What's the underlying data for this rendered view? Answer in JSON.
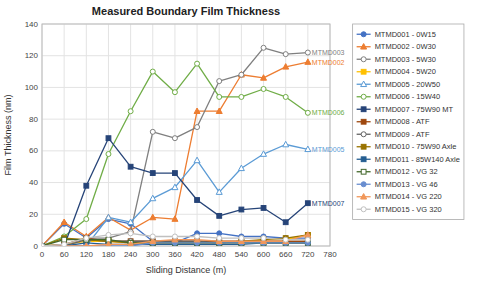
{
  "chart_data": {
    "type": "line",
    "title": "Measured Boundary Film Thickness",
    "xlabel": "Sliding Distance (m)",
    "ylabel": "Film Thickness (nm)",
    "xlim": [
      0,
      780
    ],
    "ylim": [
      0,
      140
    ],
    "xticks": [
      0,
      60,
      120,
      180,
      240,
      300,
      360,
      420,
      480,
      540,
      600,
      660,
      720,
      780
    ],
    "yticks": [
      0,
      20,
      40,
      60,
      80,
      100,
      120,
      140
    ],
    "grid": true,
    "legend": "right",
    "x": [
      0,
      60,
      120,
      180,
      240,
      300,
      360,
      420,
      480,
      540,
      600,
      660,
      720
    ],
    "series": [
      {
        "name": "MTMD001 - 0W15",
        "color": "#4472C4",
        "marker": "circle",
        "line_style": "solid",
        "values": [
          0,
          14,
          5,
          17,
          14,
          3,
          2,
          8,
          8,
          6,
          6,
          5,
          5
        ]
      },
      {
        "name": "MTMD002 - 0W30",
        "color": "#ED7D31",
        "marker": "triangle",
        "line_style": "solid",
        "values": [
          0,
          15,
          6,
          18,
          10,
          18,
          17,
          85,
          85,
          108,
          106,
          113,
          116
        ]
      },
      {
        "name": "MTMD003 - 5W30",
        "color": "#7F7F7F",
        "marker": "circle-open",
        "line_style": "solid",
        "values": [
          0,
          0,
          5,
          5,
          9,
          72,
          68,
          75,
          104,
          108,
          125,
          121,
          122
        ]
      },
      {
        "name": "MTMD004 - 5W20",
        "color": "#FFC000",
        "marker": "square",
        "line_style": "solid",
        "values": [
          0,
          1,
          3,
          3,
          2,
          2,
          2,
          2,
          2,
          2,
          4,
          4,
          7
        ]
      },
      {
        "name": "MTMD005 - 20W50",
        "color": "#5B9BD5",
        "marker": "triangle-open",
        "line_style": "solid",
        "values": [
          0,
          0,
          0,
          18,
          15,
          30,
          37,
          54,
          34,
          49,
          58,
          64,
          61
        ]
      },
      {
        "name": "MTMD006 - 15W40",
        "color": "#70AD47",
        "marker": "circle-open",
        "line_style": "solid",
        "values": [
          0,
          6,
          17,
          58,
          85,
          110,
          97,
          115,
          94,
          94,
          99,
          94,
          84
        ]
      },
      {
        "name": "MTMD007 - 75W90 MT",
        "color": "#264478",
        "marker": "square",
        "line_style": "solid",
        "values": [
          0,
          0,
          38,
          68,
          50,
          46,
          46,
          29,
          19,
          23,
          24,
          15,
          27
        ]
      },
      {
        "name": "MTMD008 - ATF",
        "color": "#9E480E",
        "marker": "square",
        "line_style": "solid",
        "values": [
          0,
          1,
          5,
          3,
          3,
          3,
          3,
          3,
          3,
          3,
          3,
          3,
          3
        ]
      },
      {
        "name": "MTMD009 - ATF",
        "color": "#636363",
        "marker": "circle-open",
        "line_style": "solid",
        "values": [
          0,
          0,
          4,
          3,
          3,
          3,
          3,
          3,
          2,
          3,
          2,
          2,
          2
        ]
      },
      {
        "name": "MTMD010 - 75W90 Axle",
        "color": "#997300",
        "marker": "square",
        "line_style": "solid",
        "values": [
          0,
          5,
          4,
          3,
          2,
          2,
          2,
          2,
          2,
          3,
          4,
          5,
          7
        ]
      },
      {
        "name": "MTMD011 - 85W140 Axle",
        "color": "#255E91",
        "marker": "square",
        "line_style": "solid",
        "values": [
          0,
          0,
          2,
          1,
          1,
          1,
          1,
          1,
          1,
          1,
          2,
          2,
          2
        ]
      },
      {
        "name": "MTMD012 - VG 32",
        "color": "#43682B",
        "marker": "square-open",
        "line_style": "solid",
        "values": [
          0,
          4,
          4,
          4,
          2,
          2,
          2,
          2,
          2,
          2,
          2,
          2,
          2
        ]
      },
      {
        "name": "MTMD013 - VG 46",
        "color": "#698ED0",
        "marker": "circle",
        "line_style": "solid",
        "values": [
          0,
          0,
          0,
          0,
          0,
          2,
          2,
          2,
          2,
          2,
          2,
          2,
          2
        ]
      },
      {
        "name": "MTMD014 - VG 220",
        "color": "#F1975A",
        "marker": "triangle",
        "line_style": "solid",
        "values": [
          0,
          0,
          0,
          1,
          1,
          3,
          4,
          4,
          3,
          3,
          3,
          3,
          7
        ]
      },
      {
        "name": "MTMD015 - VG 320",
        "color": "#C0C0C0",
        "marker": "circle-open",
        "line_style": "solid",
        "values": [
          0,
          1,
          5,
          7,
          8,
          6,
          6,
          6,
          5,
          5,
          5,
          4,
          4
        ]
      }
    ],
    "annotations": [
      {
        "text": "MTMD003",
        "x": 720,
        "y": 122,
        "color": "#7F7F7F"
      },
      {
        "text": "MTMD002",
        "x": 720,
        "y": 116,
        "color": "#ED7D31"
      },
      {
        "text": "MTMD006",
        "x": 720,
        "y": 84,
        "color": "#70AD47"
      },
      {
        "text": "MTMD005",
        "x": 720,
        "y": 61,
        "color": "#5B9BD5"
      },
      {
        "text": "MTMD007",
        "x": 720,
        "y": 27,
        "color": "#264478"
      }
    ]
  }
}
